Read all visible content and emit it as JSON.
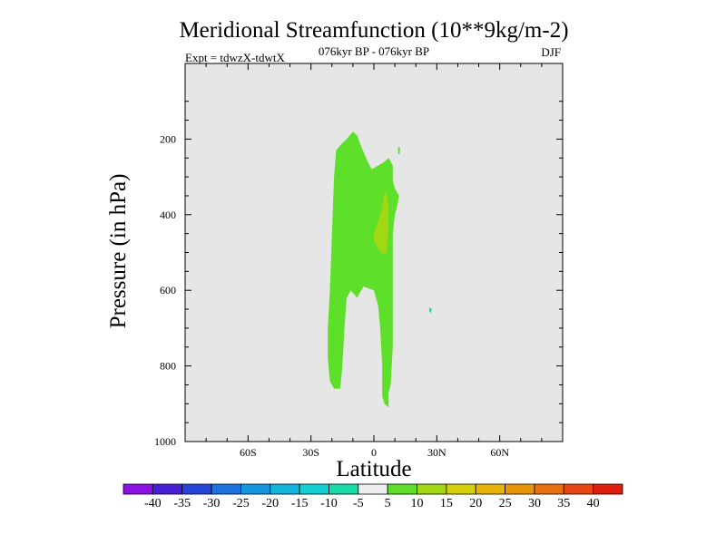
{
  "chart_data": {
    "type": "contour",
    "title": "Meridional Streamfunction (10**9kg/m-2)",
    "subtitle": "076kyr BP - 076kyr BP",
    "experiment": "Expt = tdwzX-tdwtX",
    "season": "DJF",
    "xlabel": "Latitude",
    "ylabel": "Pressure (in hPa)",
    "xlim": [
      -90,
      90
    ],
    "ylim": [
      1000,
      0
    ],
    "x_ticks": [
      {
        "value": -60,
        "label": "60S"
      },
      {
        "value": -30,
        "label": "30S"
      },
      {
        "value": 0,
        "label": "0"
      },
      {
        "value": 30,
        "label": "30N"
      },
      {
        "value": 60,
        "label": "60N"
      }
    ],
    "y_ticks": [
      {
        "value": 200,
        "label": "200"
      },
      {
        "value": 400,
        "label": "400"
      },
      {
        "value": 600,
        "label": "600"
      },
      {
        "value": 800,
        "label": "800"
      },
      {
        "value": 1000,
        "label": "1000"
      }
    ],
    "background_color": "#e6e6e6",
    "contour_regions": [
      {
        "name": "main-cell",
        "level": 5,
        "color": "#5ee02a",
        "outline": [
          [
            -19,
            860
          ],
          [
            -21,
            840
          ],
          [
            -22,
            780
          ],
          [
            -22,
            700
          ],
          [
            -21,
            600
          ],
          [
            -20,
            450
          ],
          [
            -19,
            300
          ],
          [
            -18,
            230
          ],
          [
            -15,
            210
          ],
          [
            -13,
            200
          ],
          [
            -10,
            180
          ],
          [
            -8,
            190
          ],
          [
            -6,
            220
          ],
          [
            -3,
            260
          ],
          [
            -1,
            280
          ],
          [
            2,
            270
          ],
          [
            5,
            260
          ],
          [
            7,
            250
          ],
          [
            9,
            270
          ],
          [
            9,
            310
          ],
          [
            10,
            330
          ],
          [
            12,
            350
          ],
          [
            11,
            380
          ],
          [
            10,
            400
          ],
          [
            9,
            450
          ],
          [
            9,
            550
          ],
          [
            9,
            650
          ],
          [
            9,
            750
          ],
          [
            8,
            850
          ],
          [
            7,
            870
          ],
          [
            7,
            910
          ],
          [
            5,
            900
          ],
          [
            4,
            880
          ],
          [
            4,
            800
          ],
          [
            3,
            700
          ],
          [
            2,
            640
          ],
          [
            0,
            600
          ],
          [
            -5,
            590
          ],
          [
            -8,
            620
          ],
          [
            -11,
            600
          ],
          [
            -13,
            620
          ],
          [
            -14,
            700
          ],
          [
            -15,
            800
          ],
          [
            -16,
            860
          ],
          [
            -19,
            860
          ]
        ]
      },
      {
        "name": "inner-core",
        "level": 10,
        "color": "#a2d812",
        "outline": [
          [
            6,
            340
          ],
          [
            7,
            380
          ],
          [
            7,
            430
          ],
          [
            6,
            500
          ],
          [
            4,
            505
          ],
          [
            0,
            470
          ],
          [
            0,
            450
          ],
          [
            2,
            420
          ],
          [
            4,
            380
          ],
          [
            5,
            345
          ],
          [
            6,
            340
          ]
        ]
      },
      {
        "name": "fleck-upper",
        "level": 5,
        "color": "#5ee02a",
        "outline": [
          [
            11.5,
            222
          ],
          [
            12.5,
            222
          ],
          [
            12.3,
            240
          ],
          [
            11.6,
            240
          ]
        ]
      },
      {
        "name": "fleck-lower",
        "level": -5,
        "color": "#18dca8",
        "outline": [
          [
            26.5,
            645
          ],
          [
            27.5,
            648
          ],
          [
            27.3,
            660
          ],
          [
            26.4,
            656
          ]
        ]
      }
    ],
    "colorbar": {
      "levels": [
        -40,
        -35,
        -30,
        -25,
        -20,
        -15,
        -10,
        -5,
        5,
        10,
        15,
        20,
        25,
        30,
        35,
        40
      ],
      "labels": [
        "-40",
        "-35",
        "-30",
        "-25",
        "-20",
        "-15",
        "-10",
        "-5",
        "5",
        "10",
        "15",
        "20",
        "25",
        "30",
        "35",
        "40"
      ],
      "colors": [
        "#8a12e6",
        "#4a1ed6",
        "#2845d9",
        "#1c72de",
        "#1596e0",
        "#11b5dc",
        "#10d0d4",
        "#18dca8",
        "#eeeeee",
        "#5ee02a",
        "#a2d812",
        "#d4d00a",
        "#e8b408",
        "#e69408",
        "#e87010",
        "#e84414",
        "#e01e0c"
      ]
    }
  }
}
